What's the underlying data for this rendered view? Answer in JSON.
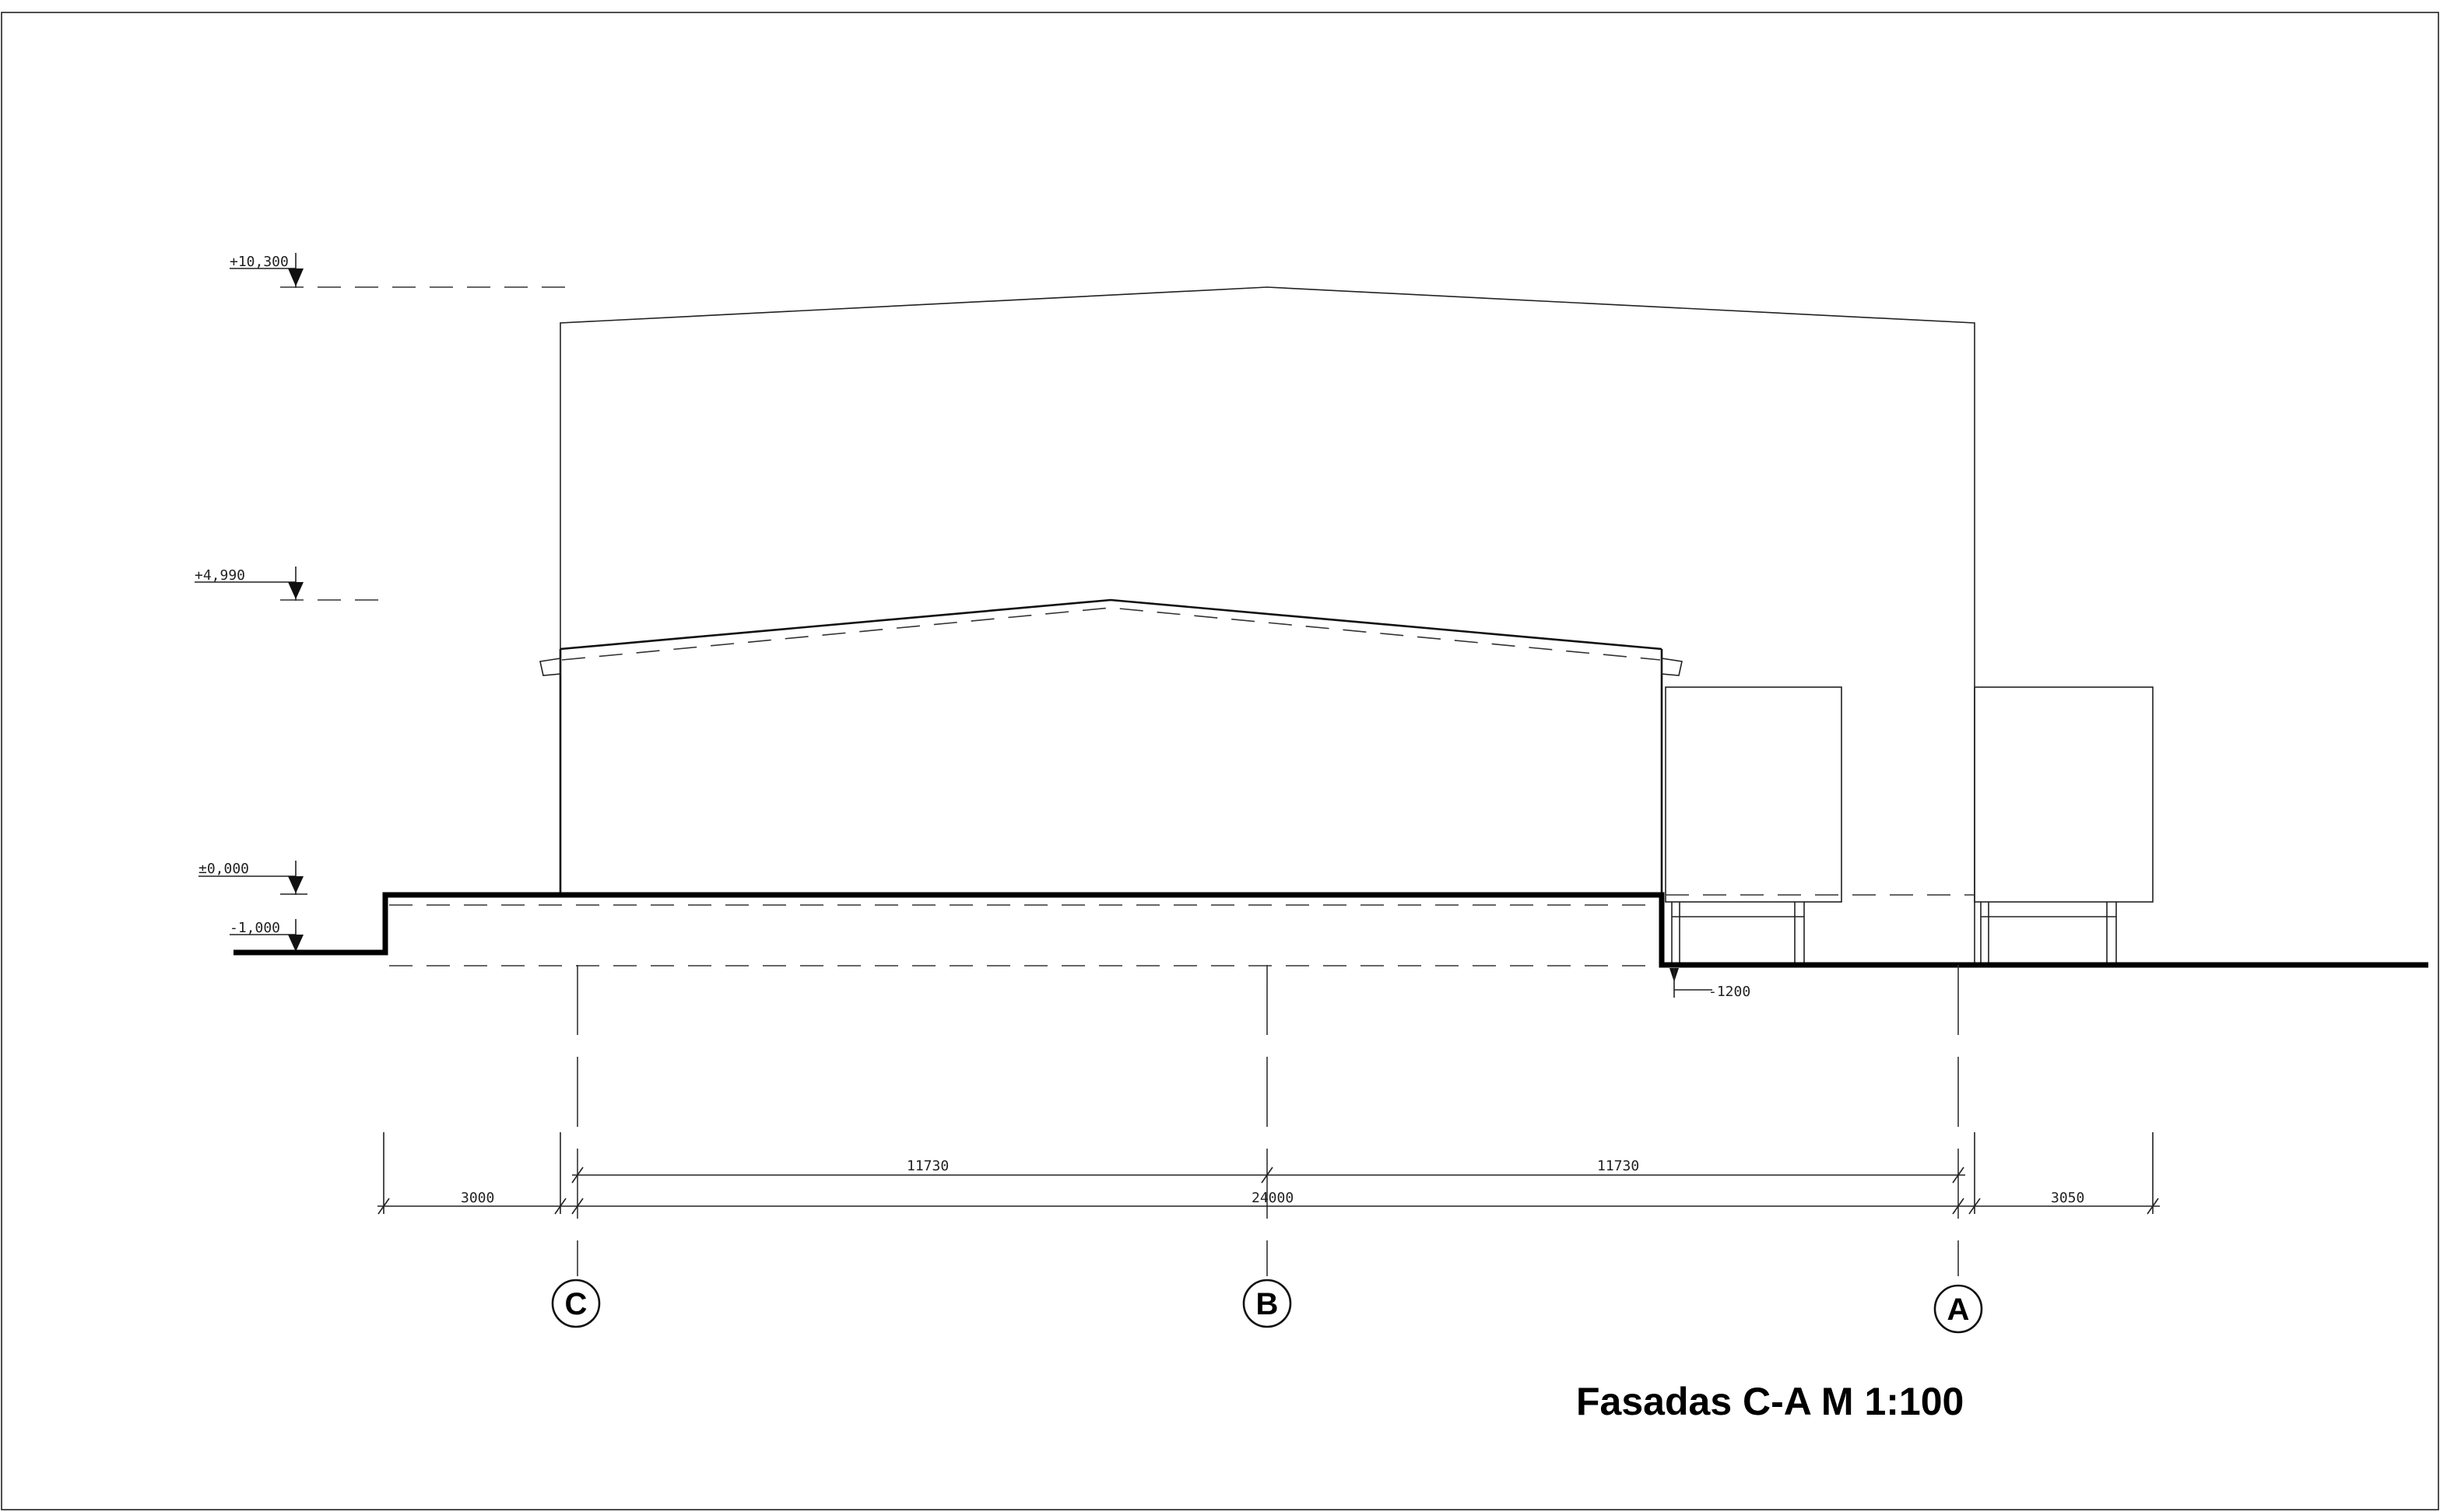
{
  "title": "Fasadas C-A M 1:100",
  "levels": {
    "top": "+10,300",
    "eave": "+4,990",
    "zero": "±0,000",
    "minus": "-1,000",
    "bottom": "-1200"
  },
  "dimensions": {
    "left_offset": "3000",
    "span_cb": "11730",
    "span_ba": "11730",
    "total": "24000",
    "right_offset": "3050"
  },
  "axes": {
    "c": "C",
    "b": "B",
    "a": "A"
  }
}
